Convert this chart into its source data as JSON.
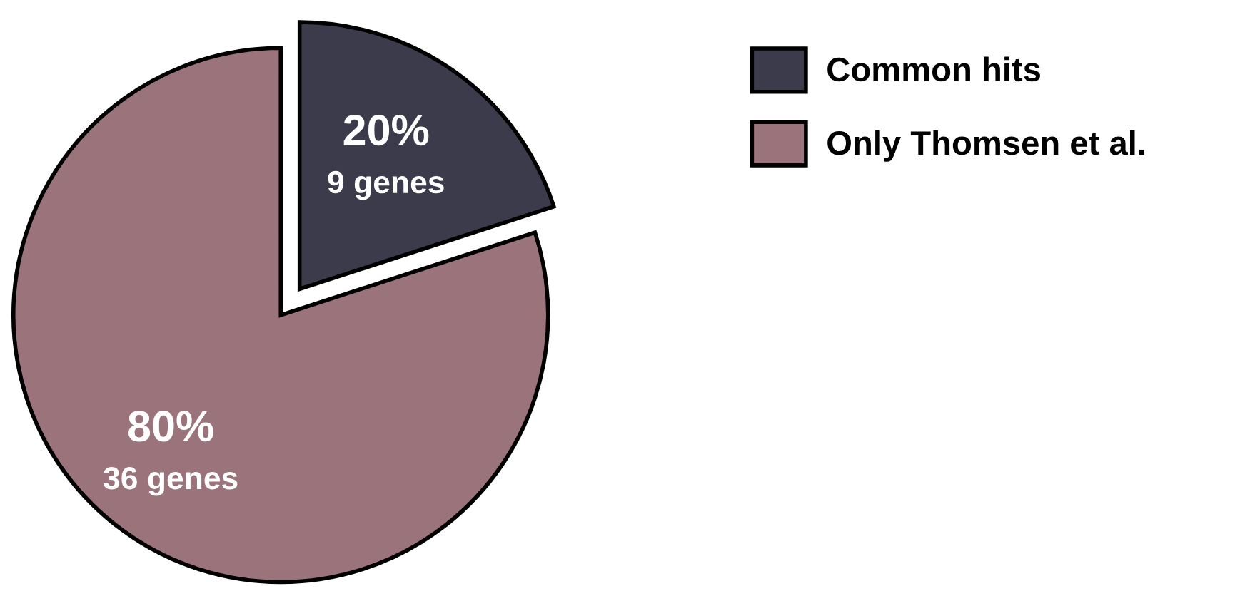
{
  "chart_data": {
    "type": "pie",
    "categories": [
      "Common hits",
      "Only Thomsen et al."
    ],
    "values": [
      20,
      80
    ],
    "colors": [
      "#3b3b4b",
      "#9b737b"
    ],
    "value_labels": [
      "20%\n9 genes",
      "80%\n36 genes"
    ],
    "legend": "right"
  }
}
